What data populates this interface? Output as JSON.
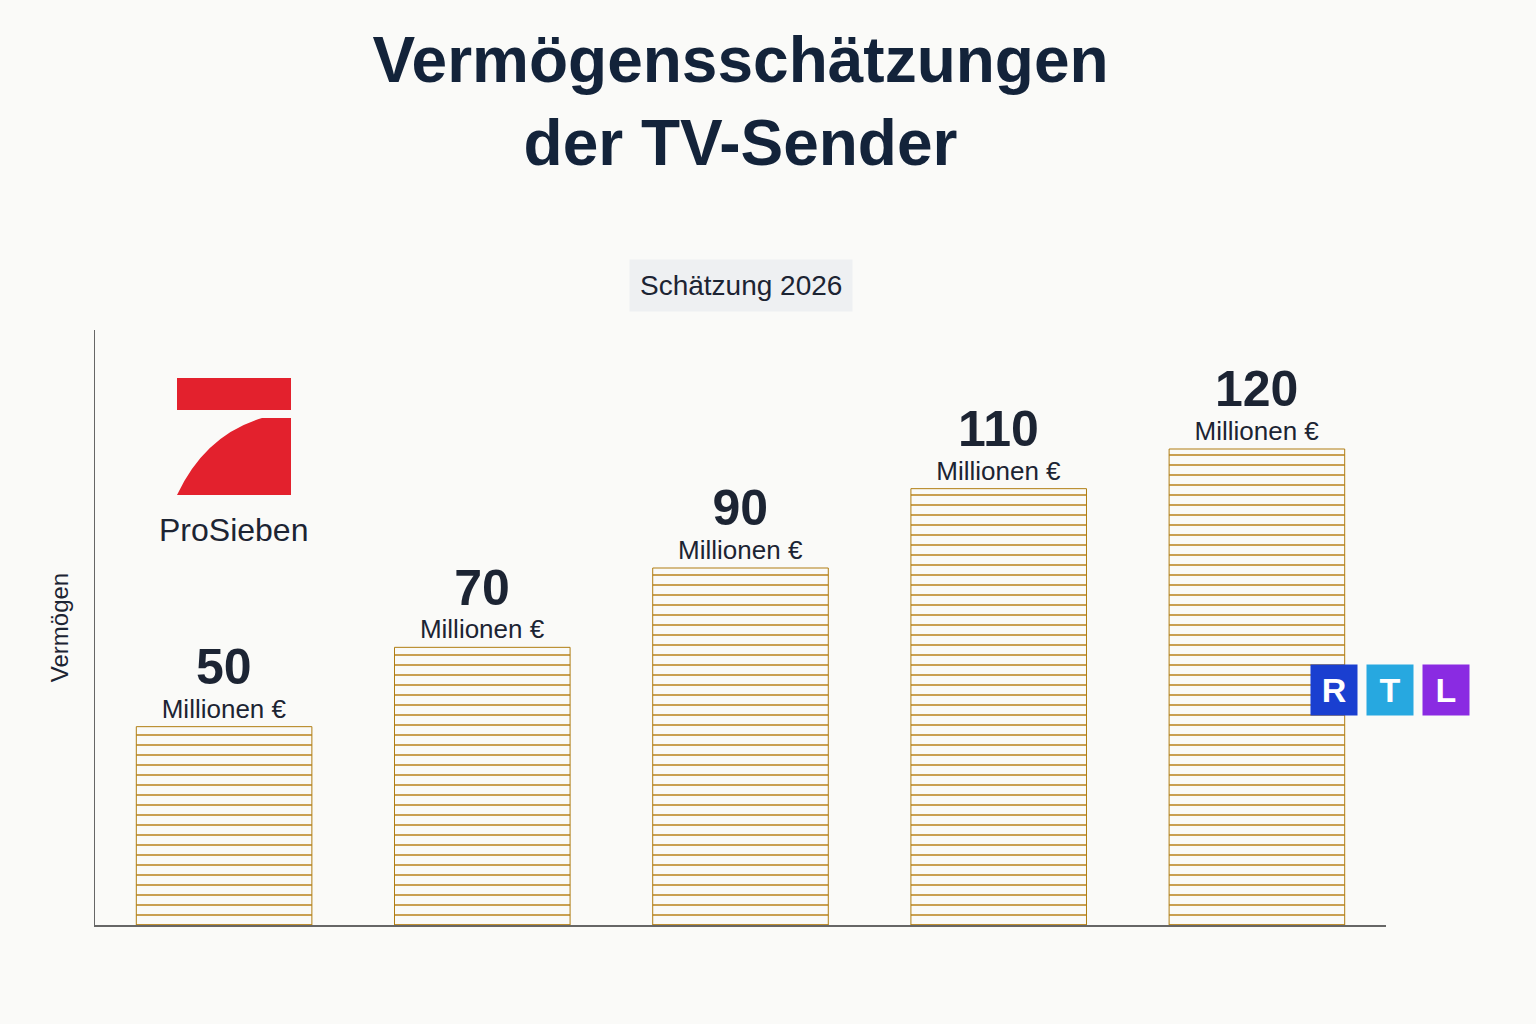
{
  "chart_data": {
    "type": "bar",
    "title": "Vermögensschätzungen der TV-Sender",
    "subtitle": "Schätzung 2026",
    "y_label": "Vermögen",
    "categories": [
      null,
      null,
      null,
      null,
      null
    ],
    "values": [
      50,
      70,
      90,
      110,
      120
    ],
    "value_labels": [
      "50 Millionen €",
      "70 Millionen €",
      "90 Millionen €",
      "110 Millionen €",
      "120 Millionen €"
    ],
    "color": "#e2a92a",
    "ylim": [
      0,
      150
    ],
    "yticks": [],
    "tick_labels": false,
    "grid": false,
    "data_labels": true,
    "annotations": [
      {
        "text": "ProSieben"
      },
      {
        "text": "RTL"
      }
    ]
  }
}
